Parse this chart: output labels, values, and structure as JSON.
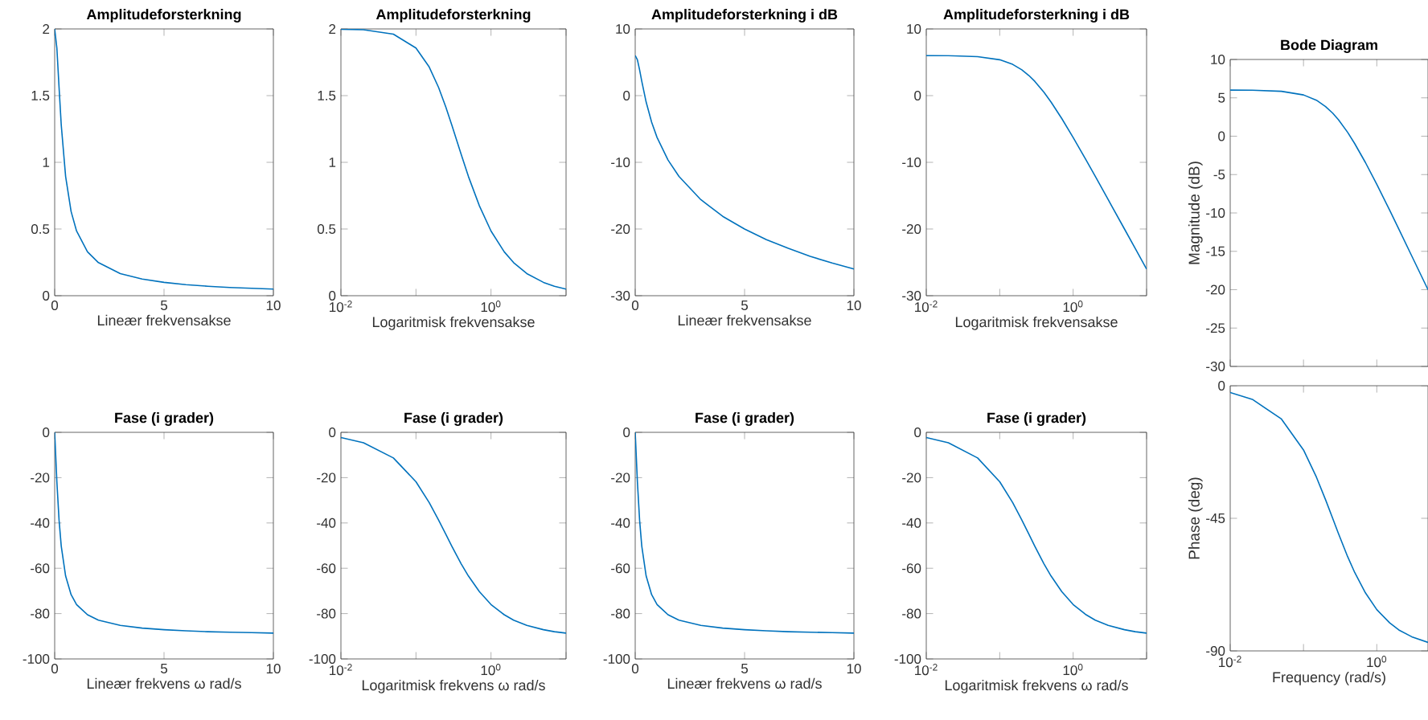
{
  "chart_data": [
    {
      "type": "line",
      "title": "Amplitudeforsterkning",
      "xlabel": "Lineær frekvensakse",
      "color": "#0072bd",
      "x": [
        0,
        0.1,
        0.2,
        0.3,
        0.5,
        0.75,
        1,
        1.5,
        2,
        3,
        4,
        5,
        6,
        7,
        8,
        9,
        10
      ],
      "values": [
        2,
        1.857,
        1.562,
        1.28,
        0.894,
        0.632,
        0.485,
        0.329,
        0.248,
        0.166,
        0.125,
        0.1,
        0.083,
        0.071,
        0.062,
        0.056,
        0.05
      ],
      "xlim": [
        0,
        10
      ],
      "ylim": [
        0,
        2
      ],
      "xticks": [
        0,
        5,
        10
      ],
      "yticks": [
        0,
        0.5,
        1,
        1.5,
        2
      ]
    },
    {
      "type": "line",
      "title": "Amplitudeforsterkning",
      "xlabel": "Logaritmisk frekvensakse",
      "color": "#0072bd",
      "log": "x",
      "x": [
        0.01,
        0.02,
        0.05,
        0.1,
        0.15,
        0.2,
        0.25,
        0.3,
        0.4,
        0.5,
        0.7,
        1,
        1.5,
        2,
        3,
        5,
        7,
        10
      ],
      "values": [
        1.998,
        1.994,
        1.961,
        1.857,
        1.715,
        1.562,
        1.414,
        1.28,
        1.06,
        0.894,
        0.674,
        0.485,
        0.329,
        0.248,
        0.166,
        0.1,
        0.071,
        0.05
      ],
      "xlim": [
        0.01,
        10
      ],
      "ylim": [
        0,
        2
      ],
      "xticks": [
        {
          "value": 0.01,
          "label": "10$^{-2}$"
        },
        {
          "value": 0.1,
          "label": null
        },
        {
          "value": 1,
          "label": "10$^{0}$"
        },
        {
          "value": 10,
          "label": null
        }
      ],
      "yticks": [
        0,
        0.5,
        1,
        1.5,
        2
      ]
    },
    {
      "type": "line",
      "title": "Amplitudeforsterkning i dB",
      "xlabel": "Lineær frekvensakse",
      "color": "#0072bd",
      "x": [
        0,
        0.1,
        0.2,
        0.3,
        0.5,
        0.75,
        1,
        1.5,
        2,
        3,
        4,
        5,
        6,
        7,
        8,
        9,
        10
      ],
      "values": [
        6.02,
        5.38,
        3.87,
        2.15,
        -0.97,
        -3.98,
        -6.28,
        -9.65,
        -12.1,
        -15.6,
        -18.1,
        -20,
        -21.6,
        -22.9,
        -24.1,
        -25.1,
        -26
      ],
      "xlim": [
        0,
        10
      ],
      "ylim": [
        -30,
        10
      ],
      "xticks": [
        0,
        5,
        10
      ],
      "yticks": [
        -30,
        -20,
        -10,
        0,
        10
      ]
    },
    {
      "type": "line",
      "title": "Amplitudeforsterkning i dB",
      "xlabel": "Logaritmisk frekvensakse",
      "color": "#0072bd",
      "log": "x",
      "x": [
        0.01,
        0.02,
        0.05,
        0.1,
        0.15,
        0.2,
        0.25,
        0.3,
        0.4,
        0.5,
        0.7,
        1,
        1.5,
        2,
        3,
        5,
        7,
        10
      ],
      "values": [
        6.01,
        5.99,
        5.85,
        5.38,
        4.69,
        3.87,
        3.01,
        2.15,
        0.51,
        -0.97,
        -3.43,
        -6.28,
        -9.65,
        -12.1,
        -15.6,
        -20,
        -22.9,
        -26
      ],
      "xlim": [
        0.01,
        10
      ],
      "ylim": [
        -30,
        10
      ],
      "xticks": [
        {
          "value": 0.01,
          "label": "10$^{-2}$"
        },
        {
          "value": 0.1,
          "label": null
        },
        {
          "value": 1,
          "label": "10$^{0}$"
        },
        {
          "value": 10,
          "label": null
        }
      ],
      "yticks": [
        -30,
        -20,
        -10,
        0,
        10
      ]
    },
    {
      "type": "line",
      "title": "Bode Diagram",
      "ylabel": "Magnitude (dB)",
      "color": "#0072bd",
      "log": "x",
      "tick_labels": "y",
      "x": [
        0.01,
        0.02,
        0.05,
        0.1,
        0.15,
        0.2,
        0.25,
        0.3,
        0.4,
        0.5,
        0.7,
        1,
        1.5,
        2,
        3,
        5
      ],
      "values": [
        6.01,
        5.99,
        5.85,
        5.38,
        4.69,
        3.87,
        3.01,
        2.15,
        0.51,
        -0.97,
        -3.43,
        -6.28,
        -9.65,
        -12.1,
        -15.6,
        -20
      ],
      "xlim": [
        0.01,
        5
      ],
      "ylim": [
        -30,
        10
      ],
      "xticks": [
        0.01,
        0.1,
        1
      ],
      "yticks": [
        -30,
        -25,
        -20,
        -15,
        -10,
        -5,
        0,
        5,
        10
      ]
    },
    {
      "type": "line",
      "title": "Fase (i grader)",
      "xlabel": "Lineær frekvens ω rad/s",
      "color": "#0072bd",
      "x": [
        0,
        0.1,
        0.2,
        0.3,
        0.5,
        0.75,
        1,
        1.5,
        2,
        3,
        4,
        5,
        6,
        7,
        8,
        9,
        10
      ],
      "values": [
        0,
        -21.8,
        -38.7,
        -50.2,
        -63.4,
        -71.6,
        -76,
        -80.5,
        -82.9,
        -85.2,
        -86.4,
        -87.1,
        -87.6,
        -88,
        -88.2,
        -88.4,
        -88.6
      ],
      "xlim": [
        0,
        10
      ],
      "ylim": [
        -100,
        0
      ],
      "xticks": [
        0,
        5,
        10
      ],
      "yticks": [
        -100,
        -80,
        -60,
        -40,
        -20,
        0
      ]
    },
    {
      "type": "line",
      "title": "Fase (i grader)",
      "xlabel": "Logaritmisk frekvens ω rad/s",
      "color": "#0072bd",
      "log": "x",
      "x": [
        0.01,
        0.02,
        0.05,
        0.1,
        0.15,
        0.2,
        0.25,
        0.3,
        0.4,
        0.5,
        0.7,
        1,
        1.5,
        2,
        3,
        5,
        7,
        10
      ],
      "values": [
        -2.3,
        -4.6,
        -11.3,
        -21.8,
        -31,
        -38.7,
        -45,
        -50.2,
        -58,
        -63.4,
        -70.3,
        -76,
        -80.5,
        -82.9,
        -85.2,
        -87.1,
        -88,
        -88.6
      ],
      "xlim": [
        0.01,
        10
      ],
      "ylim": [
        -100,
        0
      ],
      "xticks": [
        {
          "value": 0.01,
          "label": "10$^{-2}$"
        },
        {
          "value": 0.1,
          "label": null
        },
        {
          "value": 1,
          "label": "10$^{0}$"
        },
        {
          "value": 10,
          "label": null
        }
      ],
      "yticks": [
        -100,
        -80,
        -60,
        -40,
        -20,
        0
      ]
    },
    {
      "type": "line",
      "title": "Fase (i grader)",
      "xlabel": "Lineær frekvens ω rad/s",
      "color": "#0072bd",
      "x": [
        0,
        0.1,
        0.2,
        0.3,
        0.5,
        0.75,
        1,
        1.5,
        2,
        3,
        4,
        5,
        6,
        7,
        8,
        9,
        10
      ],
      "values": [
        0,
        -21.8,
        -38.7,
        -50.2,
        -63.4,
        -71.6,
        -76,
        -80.5,
        -82.9,
        -85.2,
        -86.4,
        -87.1,
        -87.6,
        -88,
        -88.2,
        -88.4,
        -88.6
      ],
      "xlim": [
        0,
        10
      ],
      "ylim": [
        -100,
        0
      ],
      "xticks": [
        0,
        5,
        10
      ],
      "yticks": [
        -100,
        -80,
        -60,
        -40,
        -20,
        0
      ]
    },
    {
      "type": "line",
      "title": "Fase (i grader)",
      "xlabel": "Logaritmisk frekvens ω rad/s",
      "color": "#0072bd",
      "log": "x",
      "x": [
        0.01,
        0.02,
        0.05,
        0.1,
        0.15,
        0.2,
        0.25,
        0.3,
        0.4,
        0.5,
        0.7,
        1,
        1.5,
        2,
        3,
        5,
        7,
        10
      ],
      "values": [
        -2.3,
        -4.6,
        -11.3,
        -21.8,
        -31,
        -38.7,
        -45,
        -50.2,
        -58,
        -63.4,
        -70.3,
        -76,
        -80.5,
        -82.9,
        -85.2,
        -87.1,
        -88,
        -88.6
      ],
      "xlim": [
        0.01,
        10
      ],
      "ylim": [
        -100,
        0
      ],
      "xticks": [
        {
          "value": 0.01,
          "label": "10$^{-2}$"
        },
        {
          "value": 0.1,
          "label": null
        },
        {
          "value": 1,
          "label": "10$^{0}$"
        },
        {
          "value": 10,
          "label": null
        }
      ],
      "yticks": [
        -100,
        -80,
        -60,
        -40,
        -20,
        0
      ]
    },
    {
      "type": "line",
      "ylabel": "Phase (deg)",
      "xlabel": "Frequency  (rad/s)",
      "color": "#0072bd",
      "log": "x",
      "x": [
        0.01,
        0.02,
        0.05,
        0.1,
        0.15,
        0.2,
        0.25,
        0.3,
        0.4,
        0.5,
        0.7,
        1,
        1.5,
        2,
        3,
        5
      ],
      "values": [
        -2.3,
        -4.6,
        -11.3,
        -21.8,
        -31,
        -38.7,
        -45,
        -50.2,
        -58,
        -63.4,
        -70.3,
        -76,
        -80.5,
        -82.9,
        -85.2,
        -87.1
      ],
      "xlim": [
        0.01,
        5
      ],
      "ylim": [
        -90,
        0
      ],
      "xticks": [
        {
          "value": 0.01,
          "label": "10$^{-2}$"
        },
        {
          "value": 0.1,
          "label": null
        },
        {
          "value": 1,
          "label": "10$^{0}$"
        }
      ],
      "yticks": [
        -90,
        -45,
        0
      ]
    }
  ]
}
